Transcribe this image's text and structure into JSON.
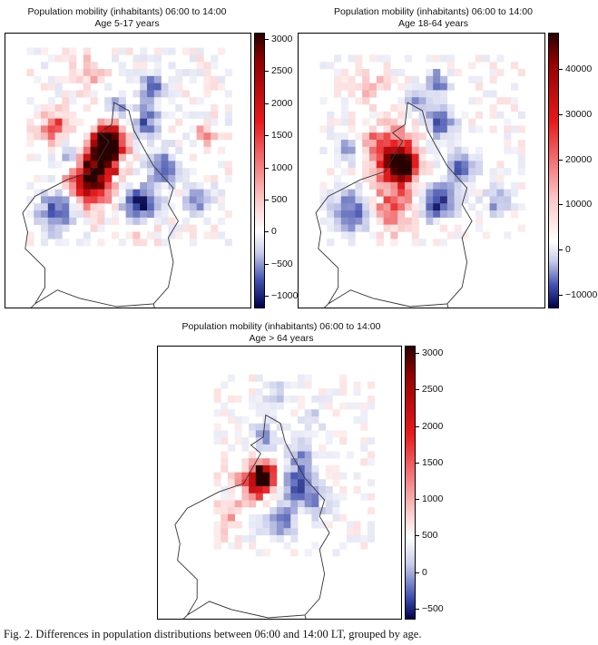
{
  "figure": {
    "caption": "Fig. 2. Differences in population distributions between 06:00 and 14:00 LT, grouped by age."
  },
  "chart_data": [
    {
      "type": "heatmap",
      "title": "Population mobility (inhabitants) 06:00 to 14:00",
      "subtitle": "Age 5-17 years",
      "colormap": "diverging blue-white-red (seismic), zero at white",
      "colorbar_ticks": [
        "3000",
        "2500",
        "2000",
        "1500",
        "1000",
        "500",
        "0",
        "−500",
        "−1000"
      ],
      "colorbar_range": [
        -1200,
        3100
      ],
      "value_range_note": "max approx. 3000 (city centre), min approx. -1000",
      "grid": false
    },
    {
      "type": "heatmap",
      "title": "Population mobility (inhabitants) 06:00 to 14:00",
      "subtitle": "Age 18-64 years",
      "colormap": "diverging blue-white-red (seismic), zero at white",
      "colorbar_ticks": [
        "40000",
        "30000",
        "20000",
        "10000",
        "0",
        "−10000"
      ],
      "colorbar_range": [
        -13000,
        48000
      ],
      "value_range_note": "max approx. 45000 (city centre), min approx. -10000",
      "grid": false
    },
    {
      "type": "heatmap",
      "title": "Population mobility (inhabitants) 06:00 to 14:00",
      "subtitle": "Age > 64 years",
      "colormap": "diverging blue-white-red (seismic), zero at white",
      "colorbar_ticks": [
        "3000",
        "2500",
        "2000",
        "1500",
        "1000",
        "500",
        "0",
        "−500"
      ],
      "colorbar_range": [
        -650,
        3100
      ],
      "value_range_note": "max approx. 3000 (city centre), min approx. -500",
      "grid": false
    }
  ],
  "colors": {
    "negative_extreme": "#00004c",
    "negative": "#3b4cc0",
    "zero": "#ffffff",
    "positive": "#e8191c",
    "positive_extreme": "#2a0000",
    "boundary": "#333333"
  }
}
